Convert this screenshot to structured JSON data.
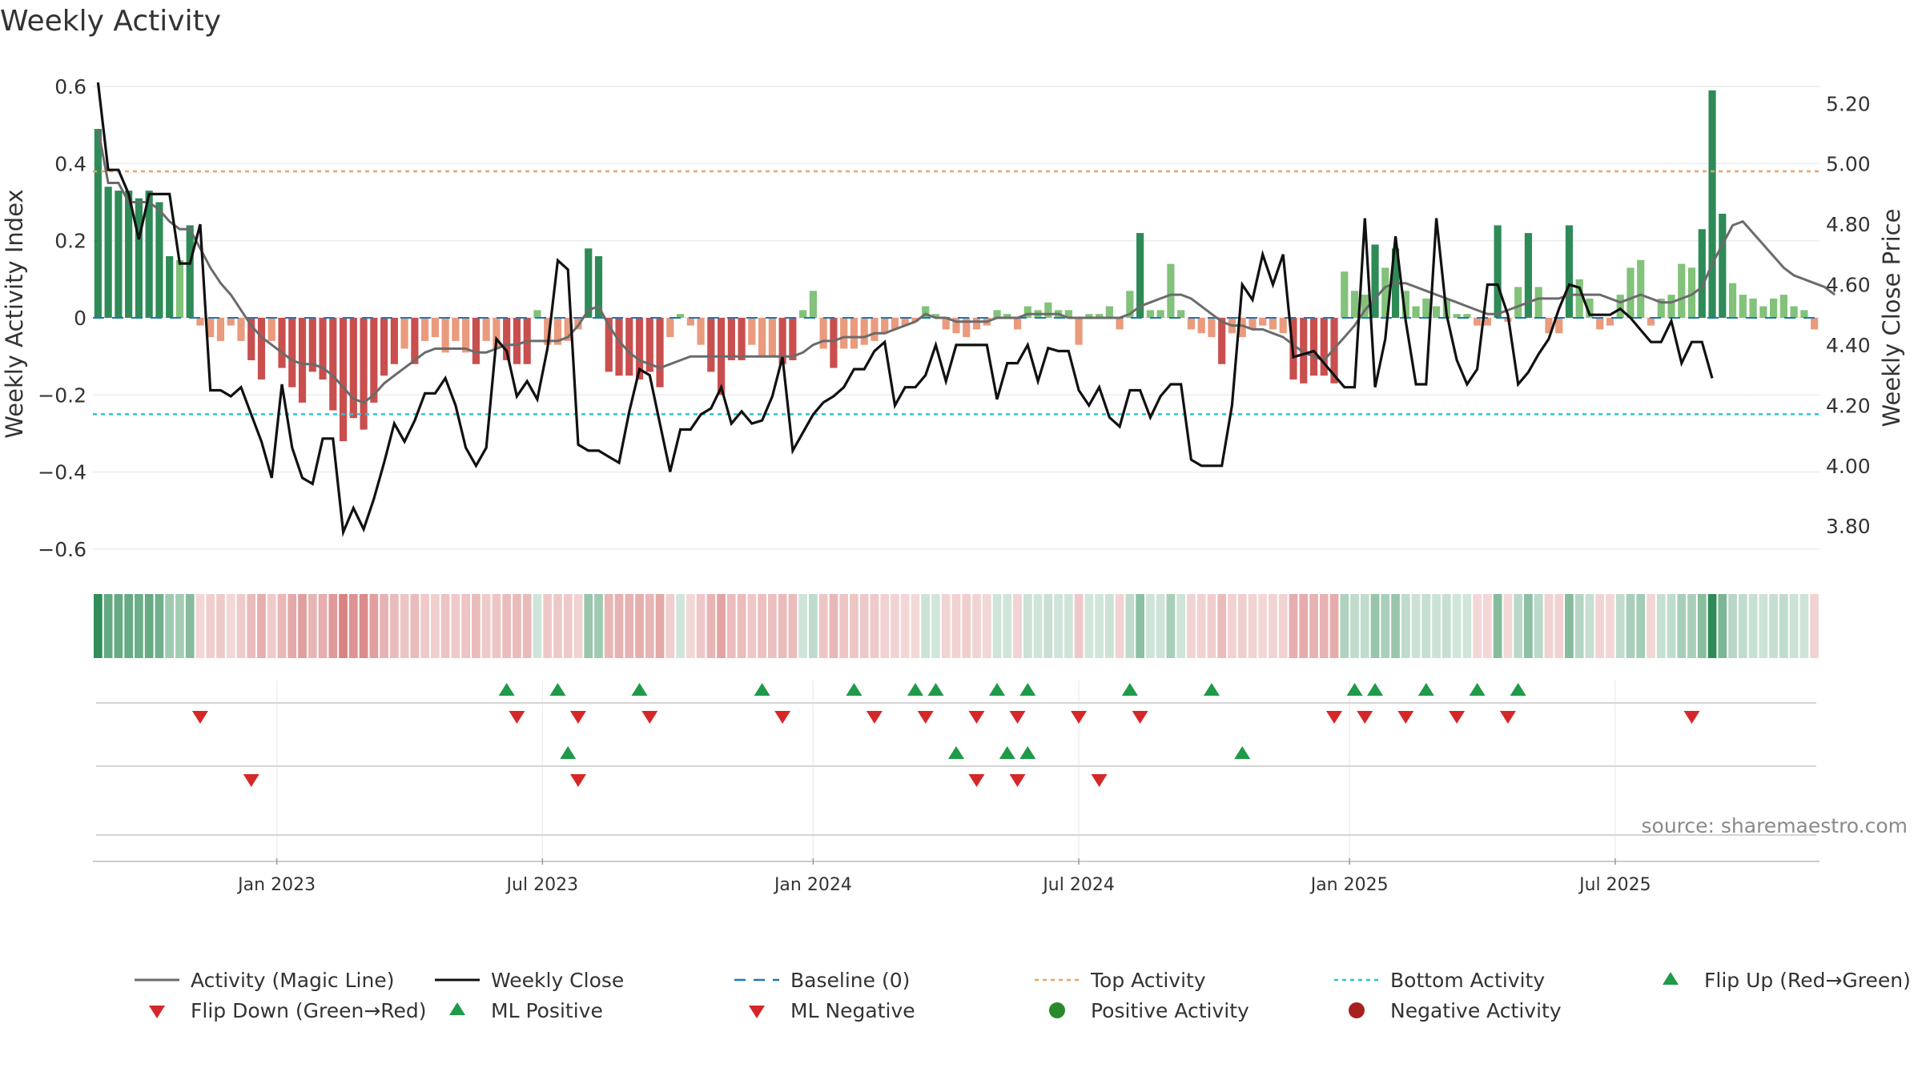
{
  "chart_data": {
    "type": "bar",
    "title": "Weekly Activity",
    "source": "source: sharemaestro.com",
    "left_axis": {
      "label": "Weekly Activity Index",
      "range": [
        -0.65,
        0.65
      ],
      "ticks": [
        -0.6,
        -0.4,
        -0.2,
        0,
        0.2,
        0.4,
        0.6
      ],
      "tick_labels": [
        "−0.6",
        "−0.4",
        "−0.2",
        "0",
        "0.2",
        "0.4",
        "0.6"
      ]
    },
    "right_axis": {
      "label": "Weekly Close Price",
      "range": [
        3.66,
        5.32
      ],
      "ticks": [
        3.8,
        4.0,
        4.2,
        4.4,
        4.6,
        4.8,
        5.0,
        5.2
      ],
      "tick_labels": [
        "3.80",
        "4.00",
        "4.20",
        "4.40",
        "4.60",
        "4.80",
        "5.00",
        "5.20"
      ]
    },
    "x_axis": {
      "ticks": [
        {
          "week": 17.5,
          "label": "Jan 2023"
        },
        {
          "week": 43.5,
          "label": "Jul 2023"
        },
        {
          "week": 70,
          "label": "Jan 2024"
        },
        {
          "week": 96,
          "label": "Jul 2024"
        },
        {
          "week": 122.5,
          "label": "Jan 2025"
        },
        {
          "week": 148.5,
          "label": "Jul 2025"
        }
      ]
    },
    "top_activity": 0.38,
    "bottom_activity": -0.25,
    "weekly_activity": [
      0.49,
      0.34,
      0.33,
      0.33,
      0.31,
      0.33,
      0.3,
      0.16,
      0.15,
      0.24,
      -0.02,
      -0.05,
      -0.06,
      -0.02,
      -0.06,
      -0.11,
      -0.16,
      -0.06,
      -0.13,
      -0.18,
      -0.22,
      -0.14,
      -0.16,
      -0.24,
      -0.32,
      -0.26,
      -0.29,
      -0.22,
      -0.15,
      -0.12,
      -0.08,
      -0.12,
      -0.06,
      -0.05,
      -0.09,
      -0.06,
      -0.09,
      -0.12,
      -0.06,
      -0.08,
      -0.11,
      -0.12,
      -0.12,
      0.02,
      -0.07,
      -0.07,
      -0.06,
      -0.03,
      0.18,
      0.16,
      -0.14,
      -0.15,
      -0.15,
      -0.16,
      -0.14,
      -0.18,
      -0.05,
      0.01,
      -0.02,
      -0.07,
      -0.14,
      -0.2,
      -0.11,
      -0.11,
      -0.07,
      -0.1,
      -0.1,
      -0.12,
      -0.11,
      0.02,
      0.07,
      -0.08,
      -0.13,
      -0.08,
      -0.08,
      -0.07,
      -0.06,
      -0.04,
      -0.03,
      -0.02,
      -0.01,
      0.03,
      0.01,
      -0.03,
      -0.04,
      -0.05,
      -0.03,
      -0.02,
      0.02,
      0.01,
      -0.03,
      0.03,
      0.02,
      0.04,
      0.02,
      0.02,
      -0.07,
      0.01,
      0.01,
      0.03,
      -0.03,
      0.07,
      0.22,
      0.02,
      0.02,
      0.14,
      0.02,
      -0.03,
      -0.04,
      -0.05,
      -0.12,
      -0.04,
      -0.05,
      -0.03,
      -0.02,
      -0.03,
      -0.04,
      -0.16,
      -0.17,
      -0.15,
      -0.15,
      -0.17,
      0.12,
      0.07,
      0.06,
      0.19,
      0.13,
      0.18,
      0.07,
      0.03,
      0.05,
      0.03,
      0.05,
      0.01,
      0.01,
      -0.02,
      -0.02,
      0.24,
      -0.01,
      0.08,
      0.22,
      0.08,
      -0.04,
      -0.04,
      0.24,
      0.1,
      0.05,
      -0.03,
      -0.02,
      0.06,
      0.13,
      0.15,
      -0.02,
      0.05,
      0.06,
      0.14,
      0.13,
      0.23,
      0.59,
      0.27,
      0.09,
      0.06,
      0.05,
      0.03,
      0.05,
      0.06,
      0.03,
      0.02,
      -0.03
    ],
    "magic_line": [
      0.49,
      0.35,
      0.35,
      0.3,
      0.3,
      0.3,
      0.28,
      0.25,
      0.23,
      0.23,
      0.18,
      0.13,
      0.09,
      0.06,
      0.02,
      -0.02,
      -0.05,
      -0.07,
      -0.09,
      -0.11,
      -0.12,
      -0.12,
      -0.13,
      -0.15,
      -0.18,
      -0.21,
      -0.22,
      -0.2,
      -0.17,
      -0.15,
      -0.13,
      -0.11,
      -0.09,
      -0.08,
      -0.08,
      -0.08,
      -0.08,
      -0.09,
      -0.09,
      -0.08,
      -0.07,
      -0.07,
      -0.06,
      -0.06,
      -0.06,
      -0.06,
      -0.05,
      -0.02,
      0.02,
      0.03,
      -0.02,
      -0.06,
      -0.09,
      -0.11,
      -0.12,
      -0.13,
      -0.12,
      -0.11,
      -0.1,
      -0.1,
      -0.1,
      -0.1,
      -0.1,
      -0.1,
      -0.1,
      -0.1,
      -0.1,
      -0.1,
      -0.1,
      -0.09,
      -0.07,
      -0.06,
      -0.06,
      -0.05,
      -0.05,
      -0.05,
      -0.04,
      -0.04,
      -0.03,
      -0.02,
      -0.01,
      0.01,
      0.0,
      0.0,
      -0.01,
      -0.01,
      -0.01,
      -0.01,
      0.0,
      0.0,
      0.0,
      0.01,
      0.01,
      0.01,
      0.01,
      0.0,
      0.0,
      0.0,
      0.0,
      0.0,
      0.0,
      0.01,
      0.03,
      0.04,
      0.05,
      0.06,
      0.06,
      0.05,
      0.03,
      0.01,
      -0.01,
      -0.02,
      -0.02,
      -0.03,
      -0.03,
      -0.04,
      -0.05,
      -0.07,
      -0.09,
      -0.1,
      -0.11,
      -0.08,
      -0.05,
      -0.02,
      0.02,
      0.05,
      0.08,
      0.09,
      0.09,
      0.08,
      0.07,
      0.06,
      0.05,
      0.04,
      0.03,
      0.02,
      0.01,
      0.01,
      0.02,
      0.03,
      0.04,
      0.05,
      0.05,
      0.05,
      0.06,
      0.06,
      0.06,
      0.06,
      0.05,
      0.04,
      0.05,
      0.06,
      0.05,
      0.04,
      0.04,
      0.05,
      0.06,
      0.08,
      0.14,
      0.19,
      0.24,
      0.25,
      0.22,
      0.19,
      0.16,
      0.13,
      0.11,
      0.1,
      0.09,
      0.08,
      0.06
    ],
    "weekly_close": [
      5.27,
      4.98,
      4.98,
      4.9,
      4.75,
      4.9,
      4.9,
      4.9,
      4.67,
      4.67,
      4.8,
      4.25,
      4.25,
      4.23,
      4.26,
      4.17,
      4.08,
      3.96,
      4.27,
      4.06,
      3.96,
      3.94,
      4.09,
      4.09,
      3.78,
      3.86,
      3.79,
      3.89,
      4.01,
      4.14,
      4.08,
      4.15,
      4.24,
      4.24,
      4.29,
      4.2,
      4.06,
      4.0,
      4.06,
      4.42,
      4.38,
      4.23,
      4.28,
      4.22,
      4.39,
      4.68,
      4.65,
      4.07,
      4.05,
      4.05,
      4.03,
      4.01,
      4.18,
      4.32,
      4.3,
      4.14,
      3.98,
      4.12,
      4.12,
      4.17,
      4.19,
      4.26,
      4.14,
      4.18,
      4.14,
      4.15,
      4.23,
      4.36,
      4.05,
      4.11,
      4.17,
      4.21,
      4.23,
      4.26,
      4.32,
      4.32,
      4.38,
      4.41,
      4.2,
      4.26,
      4.26,
      4.3,
      4.4,
      4.28,
      4.4,
      4.4,
      4.4,
      4.4,
      4.22,
      4.34,
      4.34,
      4.4,
      4.28,
      4.39,
      4.38,
      4.38,
      4.25,
      4.2,
      4.26,
      4.16,
      4.13,
      4.25,
      4.25,
      4.16,
      4.23,
      4.27,
      4.27,
      4.02,
      4.0,
      4.0,
      4.0,
      4.2,
      4.6,
      4.55,
      4.7,
      4.6,
      4.7,
      4.36,
      4.37,
      4.38,
      4.34,
      4.3,
      4.26,
      4.26,
      4.82,
      4.26,
      4.42,
      4.76,
      4.48,
      4.27,
      4.27,
      4.82,
      4.5,
      4.35,
      4.27,
      4.32,
      4.6,
      4.6,
      4.5,
      4.27,
      4.31,
      4.37,
      4.42,
      4.52,
      4.6,
      4.59,
      4.5,
      4.5,
      4.5,
      4.52,
      4.49,
      4.45,
      4.41,
      4.41,
      4.48,
      4.34,
      4.41,
      4.41,
      4.29
    ],
    "flip_up_weeks": [
      40,
      45,
      53,
      65,
      74,
      80,
      82,
      88,
      91,
      101,
      109,
      123,
      125,
      130,
      135,
      139
    ],
    "flip_down_weeks": [
      10,
      41,
      47,
      54,
      67,
      76,
      81,
      86,
      90,
      96,
      102,
      121,
      124,
      128,
      133,
      138,
      156
    ],
    "ml_positive_weeks": [
      46,
      84,
      89,
      91,
      112
    ],
    "ml_negative_weeks": [
      15,
      47,
      86,
      90,
      98
    ],
    "positive_activity_weeks": [],
    "negative_activity_weeks": [],
    "colors": {
      "strong_green": "#2e8b57",
      "light_green": "#82c27a",
      "strong_red": "#c94f4f",
      "light_red": "#ea9a7d",
      "magic_line": "#6b6b6b",
      "close": "#111111",
      "baseline": "#1f77b4",
      "top_line": "#f0a060",
      "bottom_line": "#2ec4d0",
      "marker_green": "#1f9a48",
      "marker_red": "#d62728",
      "dot_green": "#2a8a2a",
      "dot_red": "#a82020"
    },
    "legend": [
      {
        "label": "Activity (Magic Line)",
        "symbol": "line-gray"
      },
      {
        "label": "Weekly Close",
        "symbol": "line-black"
      },
      {
        "label": "Baseline (0)",
        "symbol": "dash-blue"
      },
      {
        "label": "Top Activity",
        "symbol": "dot-orange"
      },
      {
        "label": "Bottom Activity",
        "symbol": "dot-cyan"
      },
      {
        "label": "Flip Up (Red→Green)",
        "symbol": "tri-up-green"
      },
      {
        "label": "Flip Down (Green→Red)",
        "symbol": "tri-down-red"
      },
      {
        "label": "ML Positive",
        "symbol": "tri-up-green"
      },
      {
        "label": "ML Negative",
        "symbol": "tri-down-red"
      },
      {
        "label": "Positive Activity",
        "symbol": "circle-green"
      },
      {
        "label": "Negative Activity",
        "symbol": "circle-red"
      }
    ]
  }
}
